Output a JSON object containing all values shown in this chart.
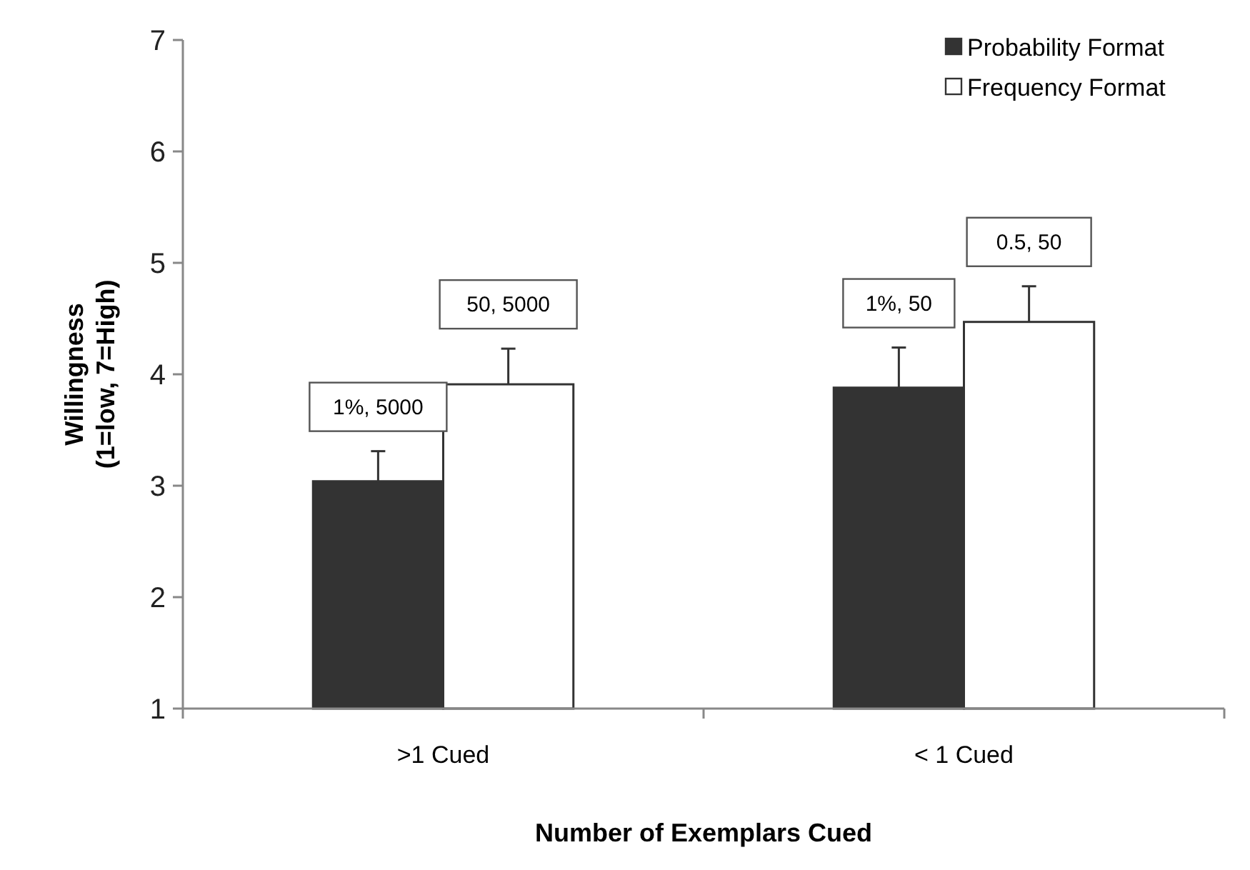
{
  "chart_data": {
    "type": "bar",
    "xlabel": "Number of Exemplars Cued",
    "ylabel": "Willingness\n(1=low, 7=High)",
    "categories": [
      ">1 Cued",
      "< 1 Cued"
    ],
    "series": [
      {
        "name": "Probability Format",
        "color": "#333333",
        "values": [
          3.04,
          3.88
        ],
        "errors": [
          [
            3.04,
            3.31
          ],
          [
            3.88,
            4.24
          ]
        ]
      },
      {
        "name": "Frequency Format",
        "color": "#ffffff",
        "values": [
          3.91,
          4.47
        ],
        "errors": [
          [
            3.91,
            4.23
          ],
          [
            4.47,
            4.79
          ]
        ]
      }
    ],
    "annotations": [
      "1%, 5000",
      "1%, 50",
      "50, 5000",
      "0.5, 50"
    ],
    "ylim": [
      1,
      7
    ],
    "yticks": [
      1,
      2,
      3,
      4,
      5,
      6,
      7
    ],
    "grid": false,
    "legend": "top right"
  }
}
